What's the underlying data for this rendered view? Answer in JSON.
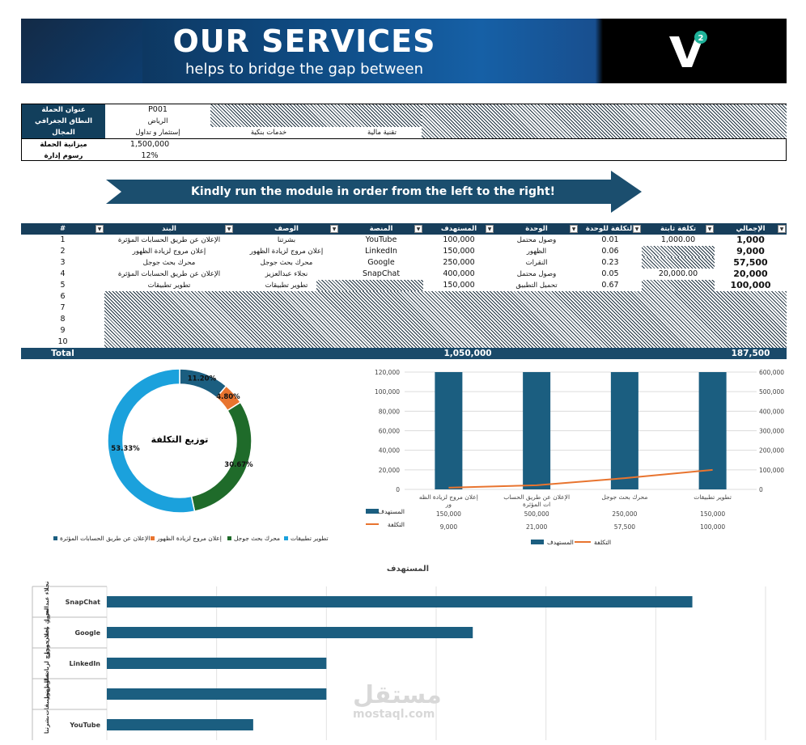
{
  "banner": {
    "title": "OUR SERVICES",
    "subtitle": "helps to bridge the gap between",
    "logo_icon": "v2-logo-icon"
  },
  "info": {
    "rows": [
      {
        "label": "عنوان الحملة",
        "value": "P001"
      },
      {
        "label": "النطاق الجغرافي",
        "value": "الرياض"
      },
      {
        "label": "المجال",
        "value": "إستثمار و تداول"
      },
      {
        "label": "ميزانية الحملة",
        "value": "1,500,000"
      },
      {
        "label": "رسوم إدارة",
        "value": "12%"
      }
    ],
    "field_options": [
      "خدمات بنكية",
      "تقنية مالية"
    ]
  },
  "arrow_text": "Kindly run the module in order from the left to the right!",
  "table": {
    "headers": [
      "#",
      "البند",
      "الوصف",
      "المنصة",
      "المستهدف",
      "الوحدة",
      "التكلفة للوحدة",
      "تكلفة ثابتة",
      "الإجمالي"
    ],
    "rows": [
      {
        "n": "1",
        "item": "الإعلان عن طريق الحسابات المؤثرة",
        "desc": "بشرتنا",
        "platform": "YouTube",
        "target": "100,000",
        "unit": "وصول محتمل",
        "unit_cost": "0.01",
        "fixed": "1,000.00",
        "total": "1,000"
      },
      {
        "n": "2",
        "item": "إعلان مروج لزيادة الظهور",
        "desc": "إعلان مروج لزيادة الظهور",
        "platform": "LinkedIn",
        "target": "150,000",
        "unit": "الظهور",
        "unit_cost": "0.06",
        "fixed": "",
        "total": "9,000"
      },
      {
        "n": "3",
        "item": "محرك بحث جوجل",
        "desc": "محرك بحث جوجل",
        "platform": "Google",
        "target": "250,000",
        "unit": "النقرات",
        "unit_cost": "0.23",
        "fixed": "",
        "total": "57,500"
      },
      {
        "n": "4",
        "item": "الإعلان عن طريق الحسابات المؤثرة",
        "desc": "نجلاء عبدالعزيز",
        "platform": "SnapChat",
        "target": "400,000",
        "unit": "وصول محتمل",
        "unit_cost": "0.05",
        "fixed": "20,000.00",
        "total": "20,000"
      },
      {
        "n": "5",
        "item": "تطوير تطبيقات",
        "desc": "تطوير تطبيقات",
        "platform": "",
        "target": "150,000",
        "unit": "تحميل التطبيق",
        "unit_cost": "0.67",
        "fixed": "",
        "total": "100,000"
      },
      {
        "n": "6"
      },
      {
        "n": "7"
      },
      {
        "n": "8"
      },
      {
        "n": "9"
      },
      {
        "n": "10"
      }
    ],
    "total_label": "Total",
    "total_target": "1,050,000",
    "total_cost": "187,500"
  },
  "chart_data": [
    {
      "type": "pie",
      "title": "توزيع التكلفة",
      "labels": [
        "الإعلان عن طريق الحسابات المؤثرة",
        "إعلان مروج لزيادة الظهور",
        "محرك بحث جوجل",
        "تطوير تطبيقات"
      ],
      "values": [
        11.2,
        4.8,
        30.67,
        53.33
      ],
      "value_labels": [
        "11.20%",
        "4.80%",
        "30.67%",
        "53.33%"
      ],
      "colors": [
        "#1b5e80",
        "#e8742f",
        "#1f6b2a",
        "#1ba1dc"
      ],
      "legend": "bottom"
    },
    {
      "type": "bar",
      "categories": [
        "إعلان مروج لزيادة الظهور",
        "الإعلان عن طريق الحسابات المؤثرة",
        "محرك بحث جوجل",
        "تطوير تطبيقات"
      ],
      "series": [
        {
          "name": "المستهدف",
          "type": "bar",
          "values": [
            150000,
            500000,
            250000,
            150000
          ],
          "value_labels": [
            "150,000",
            "500,000",
            "250,000",
            "150,000"
          ],
          "color": "#1b5e80"
        },
        {
          "name": "التكلفة",
          "type": "line",
          "values": [
            9000,
            21000,
            57500,
            100000
          ],
          "value_labels": [
            "9,000",
            "21,000",
            "57,500",
            "100,000"
          ],
          "color": "#e8742f"
        }
      ],
      "yticks_left": [
        "0",
        "20,000",
        "40,000",
        "60,000",
        "80,000",
        "100,000",
        "120,000"
      ],
      "yticks_right": [
        "0",
        "100,000",
        "200,000",
        "300,000",
        "400,000",
        "500,000",
        "600,000"
      ],
      "ylim_left": [
        0,
        120000
      ],
      "ylim_right": [
        0,
        600000
      ],
      "legend": "bottom",
      "grid": true
    },
    {
      "type": "bar",
      "orientation": "horizontal",
      "title": "المستهدف",
      "categories": [
        {
          "group": "نجلاء عبدالعزيز",
          "platform": "SnapChat",
          "value": 400000
        },
        {
          "group": "محرك بحث جوجل",
          "platform": "Google",
          "value": 250000
        },
        {
          "group": "إعلان مروج لزيادة الظهور",
          "platform": "LinkedIn",
          "value": 150000
        },
        {
          "group": "تطوير تطبيقات",
          "platform": "",
          "value": 150000
        },
        {
          "group": "بشرتنا",
          "platform": "YouTube",
          "value": 100000
        }
      ],
      "xlim": [
        0,
        450000
      ],
      "color": "#1b5e80",
      "grid": true
    }
  ],
  "watermark": {
    "arabic": "مستقل",
    "latin": "mostaql.com"
  }
}
